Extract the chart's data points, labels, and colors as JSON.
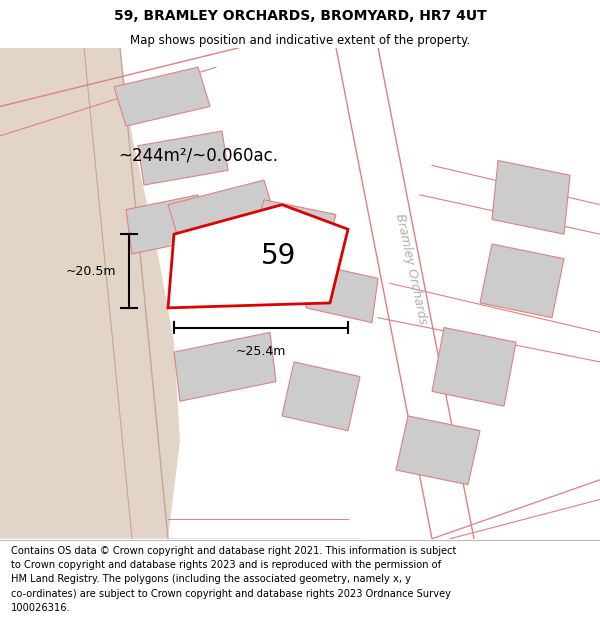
{
  "title_line1": "59, BRAMLEY ORCHARDS, BROMYARD, HR7 4UT",
  "title_line2": "Map shows position and indicative extent of the property.",
  "footer_text": "Contains OS data © Crown copyright and database right 2021. This information is subject\nto Crown copyright and database rights 2023 and is reproduced with the permission of\nHM Land Registry. The polygons (including the associated geometry, namely x, y\nco-ordinates) are subject to Crown copyright and database rights 2023 Ordnance Survey\n100026316.",
  "bg_color": "#faf6f2",
  "left_bg": "#e2d5c8",
  "road_label": "Bramley Orchards",
  "area_label": "~244m²/~0.060ac.",
  "number_label": "59",
  "width_label": "~25.4m",
  "height_label": "~20.5m",
  "highlight_color": "#dd0000",
  "building_color": "#cccccc",
  "building_edge": "#e08080",
  "road_color": "#e08080",
  "cadastral_color": "#e08080",
  "left_path_color": "#d4c4b8",
  "dim_color": "#000000",
  "road_label_color": "#b0b0b0"
}
